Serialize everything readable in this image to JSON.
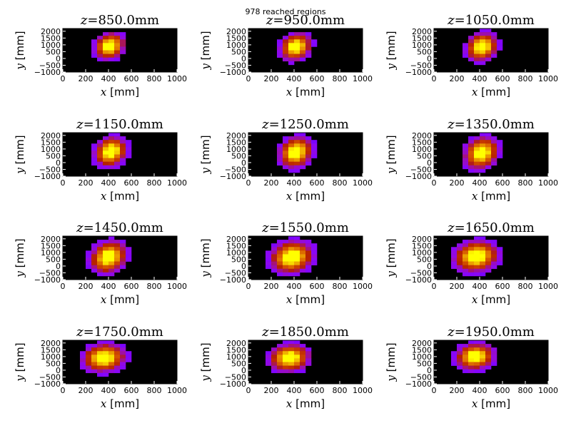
{
  "figure": {
    "suptitle": "978 reached regions"
  },
  "chart_data": {
    "type": "heatmap",
    "colormap": "gnuplot",
    "xlabel": "[mm]",
    "xlabel_var": "x",
    "ylabel": "[mm]",
    "ylabel_var": "y",
    "xlim": [
      0,
      1000
    ],
    "ylim": [
      -1000,
      2200
    ],
    "xticks": [
      0,
      200,
      400,
      600,
      800,
      1000
    ],
    "yticks": [
      -1000,
      -500,
      0,
      500,
      1000,
      1500,
      2000
    ],
    "title_prefix": "z",
    "title_eq": "=",
    "title_unit": "mm",
    "panels": [
      {
        "z": "850.0",
        "cx": 410,
        "cy": 900,
        "sx": 70,
        "sy": 520,
        "tilt": 0.22,
        "peak": 1.0
      },
      {
        "z": "950.0",
        "cx": 415,
        "cy": 850,
        "sx": 72,
        "sy": 540,
        "tilt": 0.22,
        "peak": 1.0
      },
      {
        "z": "1050.0",
        "cx": 420,
        "cy": 850,
        "sx": 72,
        "sy": 560,
        "tilt": 0.2,
        "peak": 1.0
      },
      {
        "z": "1150.0",
        "cx": 420,
        "cy": 800,
        "sx": 75,
        "sy": 600,
        "tilt": 0.2,
        "peak": 1.0
      },
      {
        "z": "1250.0",
        "cx": 415,
        "cy": 750,
        "sx": 78,
        "sy": 620,
        "tilt": 0.2,
        "peak": 1.0
      },
      {
        "z": "1350.0",
        "cx": 415,
        "cy": 700,
        "sx": 80,
        "sy": 640,
        "tilt": 0.22,
        "peak": 1.0
      },
      {
        "z": "1450.0",
        "cx": 400,
        "cy": 650,
        "sx": 85,
        "sy": 640,
        "tilt": 0.24,
        "peak": 1.0
      },
      {
        "z": "1550.0",
        "cx": 380,
        "cy": 650,
        "sx": 100,
        "sy": 650,
        "tilt": 0.2,
        "peak": 1.0
      },
      {
        "z": "1650.0",
        "cx": 370,
        "cy": 700,
        "sx": 105,
        "sy": 620,
        "tilt": 0.18,
        "peak": 1.0
      },
      {
        "z": "1750.0",
        "cx": 360,
        "cy": 900,
        "sx": 100,
        "sy": 560,
        "tilt": 0.16,
        "peak": 1.0
      },
      {
        "z": "1850.0",
        "cx": 360,
        "cy": 900,
        "sx": 95,
        "sy": 540,
        "tilt": 0.14,
        "peak": 1.0
      },
      {
        "z": "1950.0",
        "cx": 360,
        "cy": 1000,
        "sx": 90,
        "sy": 520,
        "tilt": 0.14,
        "peak": 1.0
      }
    ]
  }
}
